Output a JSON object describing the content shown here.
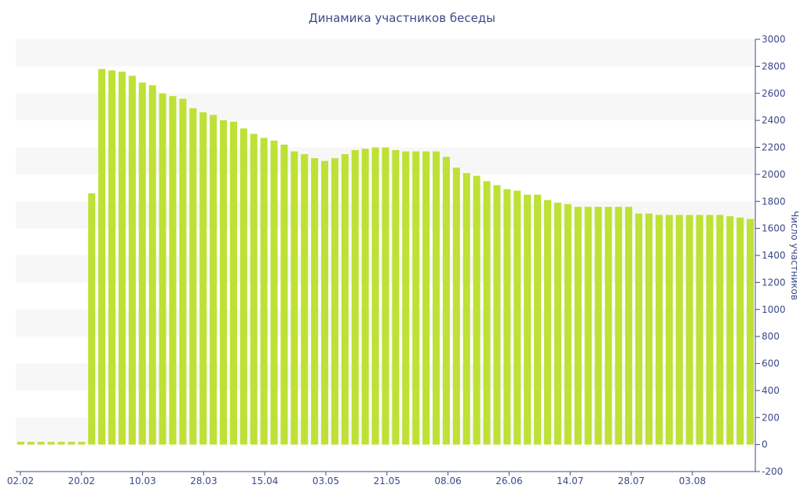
{
  "chart_data": {
    "type": "bar",
    "title": "Динамика участников беседы",
    "ylabel": "Число участников",
    "xlabel": "",
    "ylim": [
      -200,
      3000
    ],
    "y_axis_side": "right",
    "y_ticks": [
      -200,
      0,
      200,
      400,
      600,
      800,
      1000,
      1200,
      1400,
      1600,
      1800,
      2000,
      2200,
      2400,
      2600,
      2800,
      3000
    ],
    "x_tick_labels": [
      "02.02",
      "20.02",
      "10.03",
      "28.03",
      "15.04",
      "03.05",
      "21.05",
      "08.06",
      "26.06",
      "14.07",
      "28.07",
      "03.08"
    ],
    "grid": "alternating horizontal bands",
    "bar_color": "#bde135",
    "band_color": "#f7f7f7",
    "text_color": "#3c4a8a",
    "values": [
      20,
      20,
      20,
      20,
      20,
      20,
      20,
      1860,
      2780,
      2770,
      2760,
      2730,
      2680,
      2660,
      2600,
      2580,
      2560,
      2490,
      2460,
      2440,
      2400,
      2390,
      2340,
      2300,
      2270,
      2250,
      2220,
      2170,
      2150,
      2120,
      2100,
      2120,
      2150,
      2180,
      2190,
      2200,
      2200,
      2180,
      2170,
      2170,
      2170,
      2170,
      2130,
      2050,
      2010,
      1990,
      1950,
      1920,
      1890,
      1880,
      1850,
      1850,
      1810,
      1790,
      1780,
      1760,
      1760,
      1760,
      1760,
      1760,
      1760,
      1710,
      1710,
      1700,
      1700,
      1700,
      1700,
      1700,
      1700,
      1700,
      1690,
      1680,
      1670
    ]
  }
}
